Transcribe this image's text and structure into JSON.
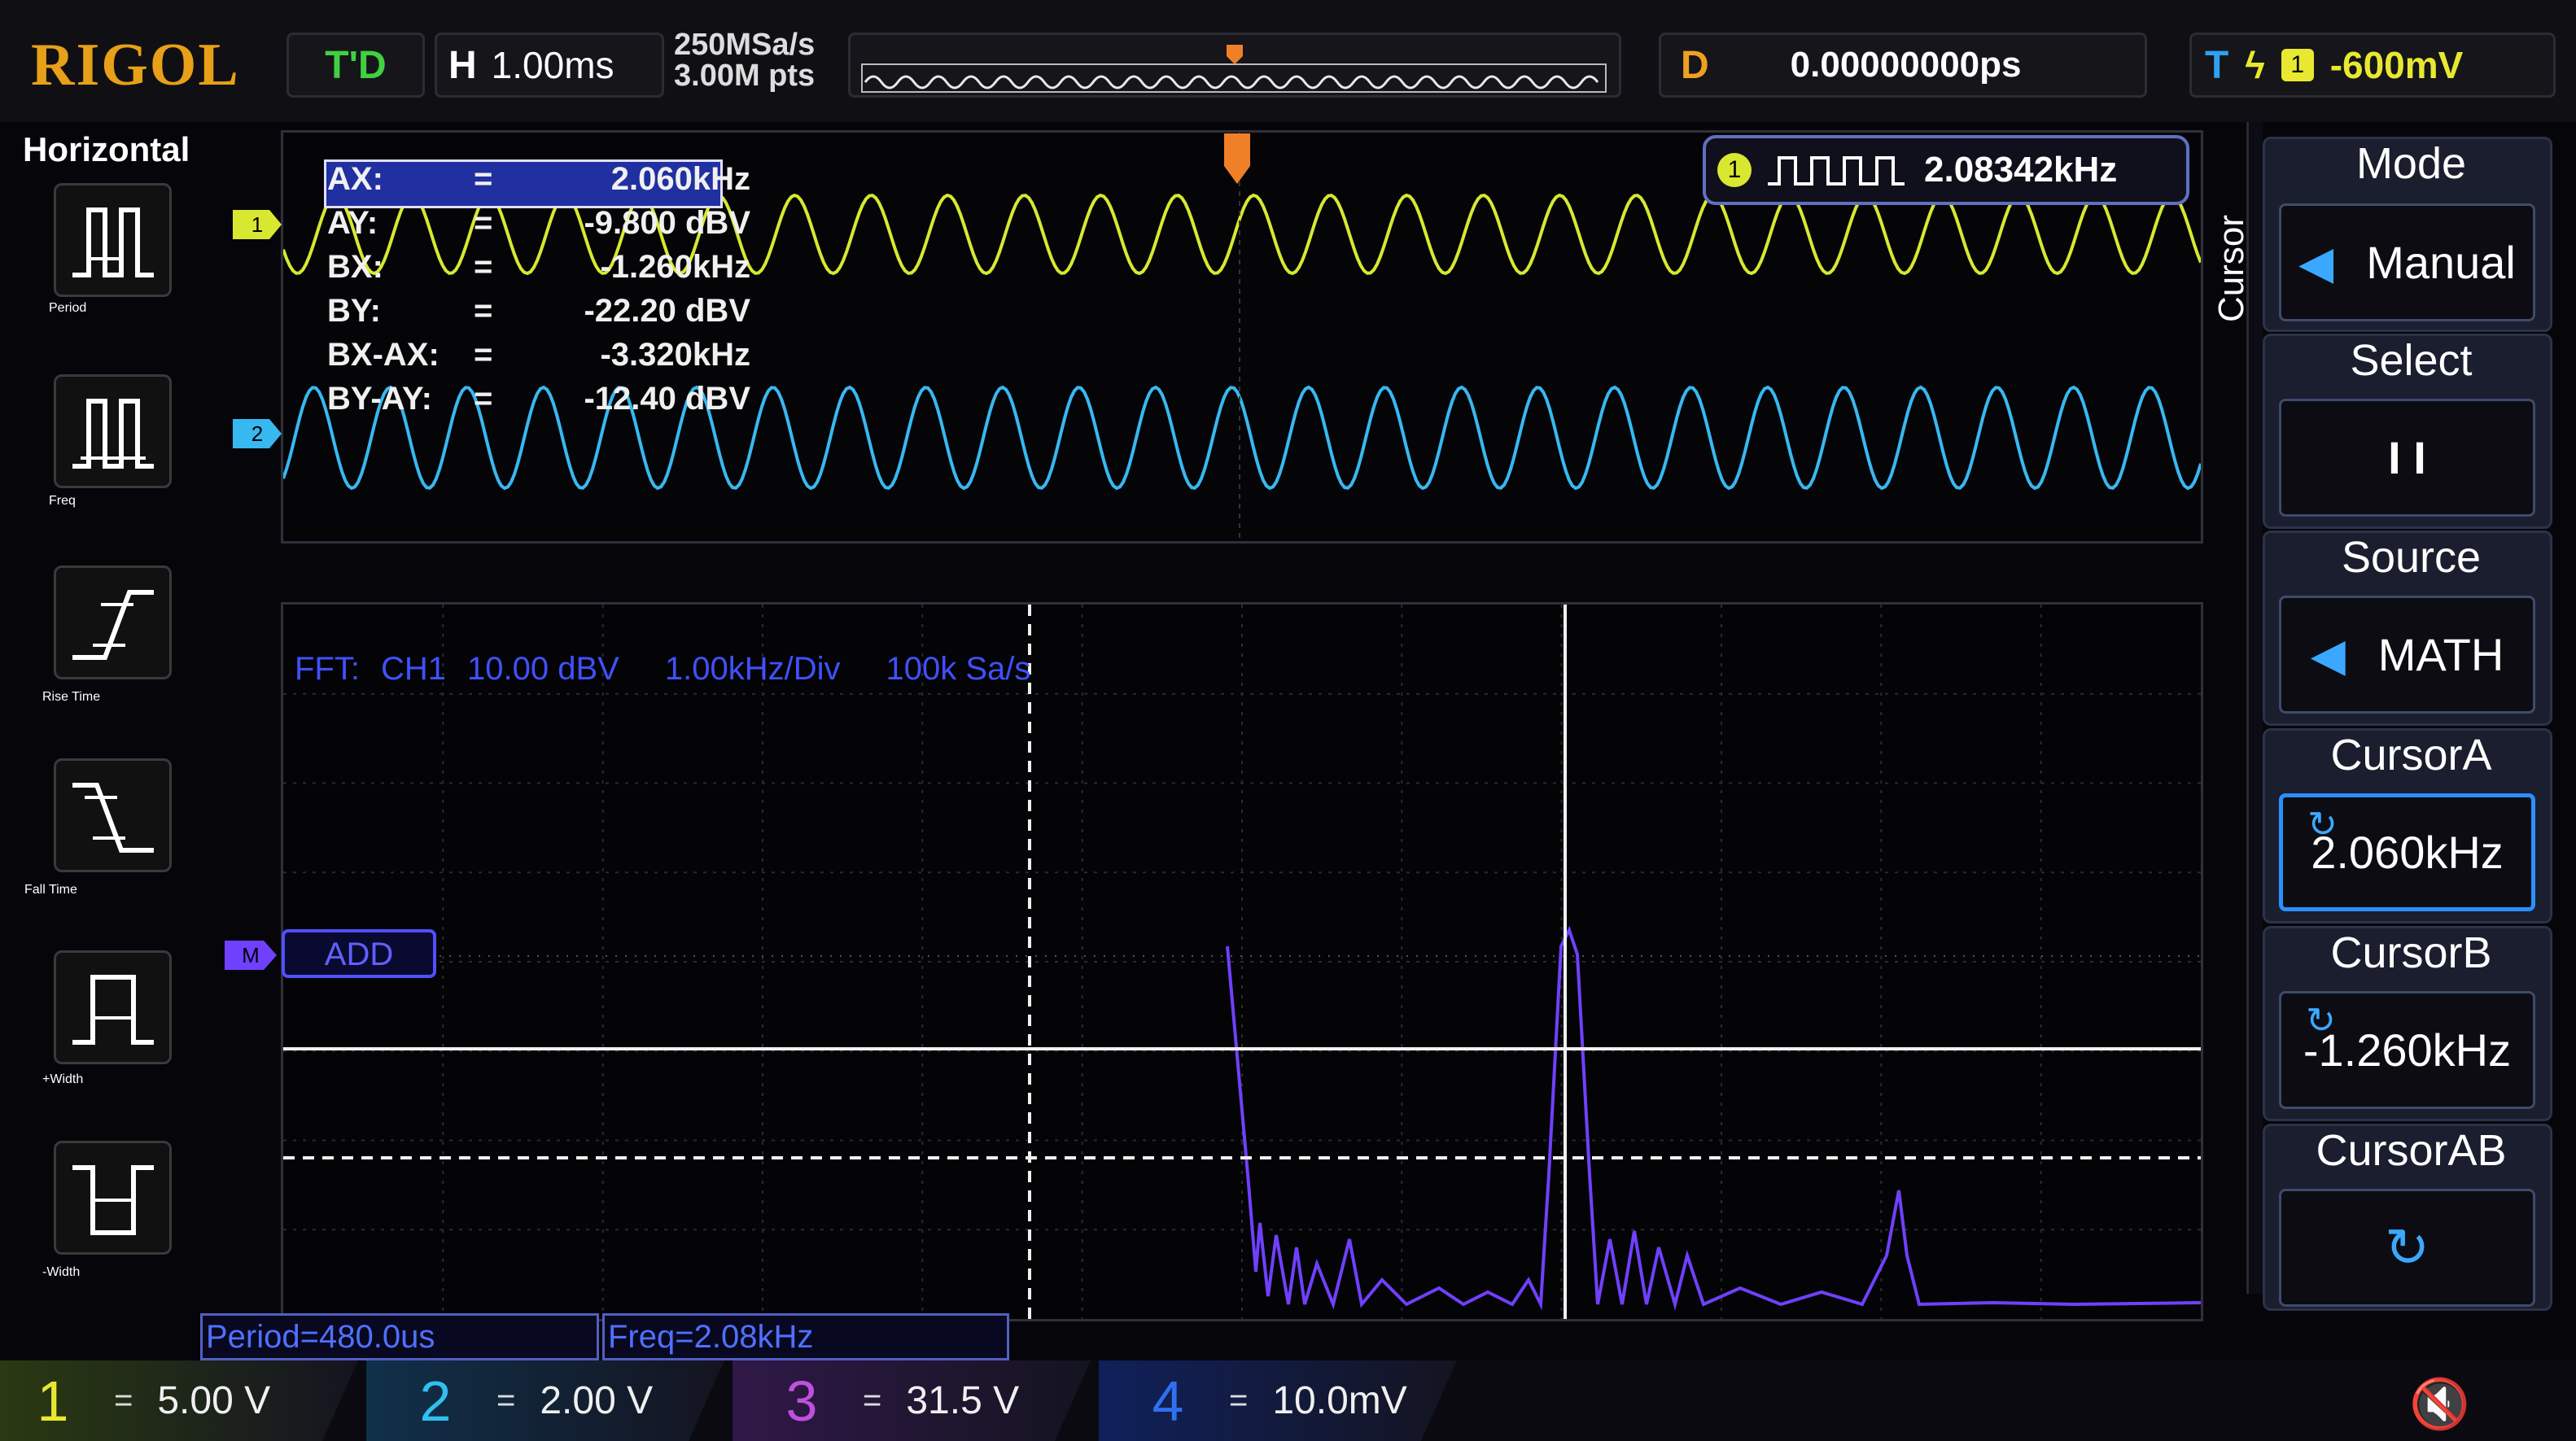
{
  "brand": "RIGOL",
  "top": {
    "trig_state": "T'D",
    "h_label": "H",
    "timebase": "1.00ms",
    "sample_rate": "250MSa/s",
    "mem_depth": "3.00M pts",
    "delay_label": "D",
    "delay": "0.00000000ps",
    "trig_label": "T",
    "trig_source": "1",
    "trig_level": "-600mV"
  },
  "left_menu": {
    "title": "Horizontal",
    "items": [
      {
        "label": "Period",
        "icon": "period-icon"
      },
      {
        "label": "Freq",
        "icon": "freq-icon"
      },
      {
        "label": "Rise Time",
        "icon": "rise-time-icon"
      },
      {
        "label": "Fall Time",
        "icon": "fall-time-icon"
      },
      {
        "label": "+Width",
        "icon": "plus-width-icon"
      },
      {
        "label": "-Width",
        "icon": "minus-width-icon"
      }
    ]
  },
  "cursor_readout": [
    {
      "name": "AX:",
      "eq": "=",
      "value": "2.060kHz"
    },
    {
      "name": "AY:",
      "eq": "=",
      "value": "-9.800 dBV"
    },
    {
      "name": "BX:",
      "eq": "=",
      "value": "-1.260kHz"
    },
    {
      "name": "BY:",
      "eq": "=",
      "value": "-22.20 dBV"
    },
    {
      "name": "BX-AX:",
      "eq": "=",
      "value": "-3.320kHz"
    },
    {
      "name": "BY-AY:",
      "eq": "=",
      "value": "-12.40 dBV"
    }
  ],
  "freq_counter": {
    "channel": "1",
    "value": "2.08342kHz"
  },
  "fft_info": {
    "source": "FFT:",
    "channel": "CH1",
    "scale": "10.00 dBV",
    "hdiv": "1.00kHz/Div",
    "rate": "100k Sa/s"
  },
  "math_label": "ADD",
  "markers": {
    "ch1": "1",
    "ch2": "2",
    "math": "M"
  },
  "measurements": {
    "period": "Period=480.0us",
    "freq": "Freq=2.08kHz"
  },
  "right_menu": {
    "side_title": "Cursor",
    "mode_title": "Mode",
    "mode_value": "Manual",
    "select_title": "Select",
    "select_value": "I  I",
    "source_title": "Source",
    "source_value": "MATH",
    "cursor_a_title": "CursorA",
    "cursor_a_value": "2.060kHz",
    "cursor_b_title": "CursorB",
    "cursor_b_value": "-1.260kHz",
    "cursor_ab_title": "CursorAB"
  },
  "channels": [
    {
      "num": "1",
      "coupling": "=",
      "scale": "5.00 V",
      "color": "#e8e830"
    },
    {
      "num": "2",
      "coupling": "=",
      "scale": "2.00 V",
      "color": "#30c0f0"
    },
    {
      "num": "3",
      "coupling": "=",
      "scale": "31.5 V",
      "color": "#c050e0"
    },
    {
      "num": "4",
      "coupling": "=",
      "scale": "10.0mV",
      "color": "#3070f0"
    }
  ],
  "colors": {
    "ch1": "#d8e830",
    "ch2": "#38b8f0",
    "math": "#7040ff",
    "accent": "#f0b020"
  }
}
